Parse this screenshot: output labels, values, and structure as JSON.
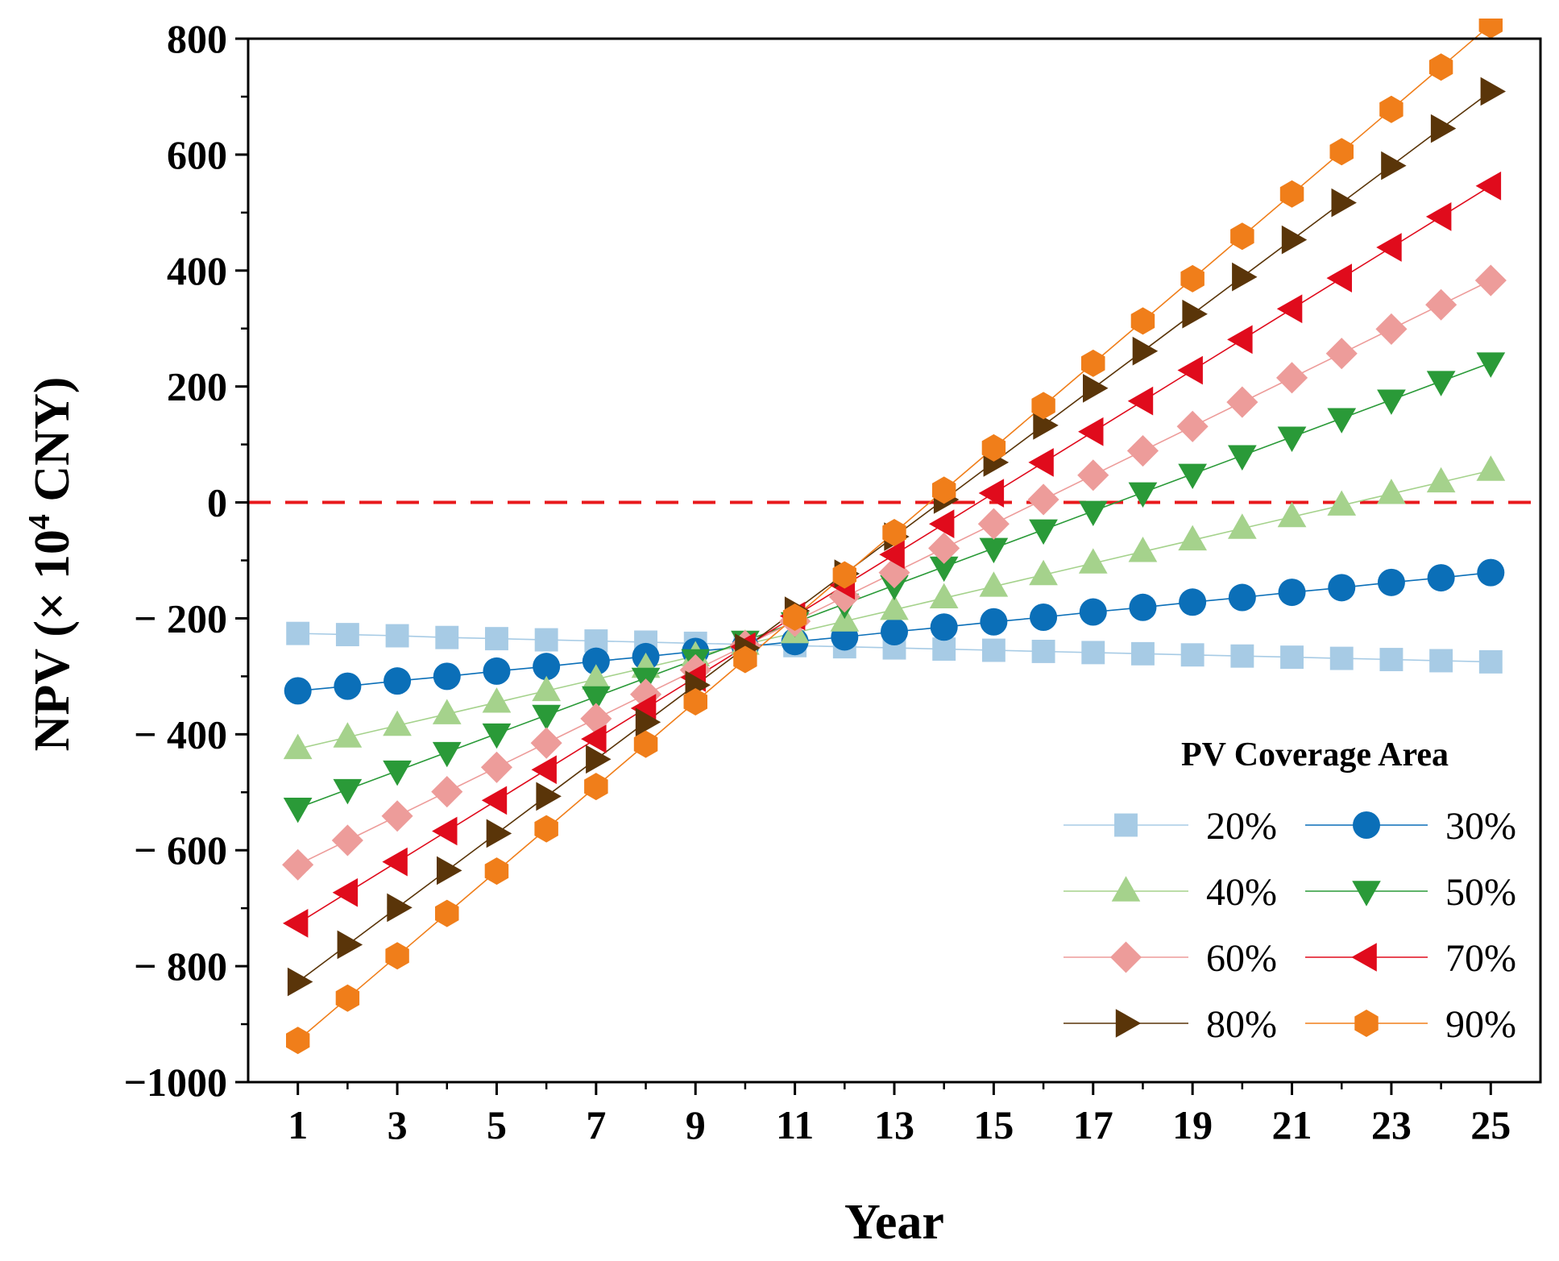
{
  "chart_data": {
    "type": "line",
    "xlabel": "Year",
    "ylabel": "NPV (× 10",
    "ylabel_superscript": "4",
    "ylabel_suffix": " CNY)",
    "xlim": [
      0,
      26
    ],
    "ylim": [
      -1000,
      800
    ],
    "x_ticks": [
      1,
      3,
      5,
      7,
      9,
      11,
      13,
      15,
      17,
      19,
      21,
      23,
      25
    ],
    "x_tick_labels": [
      "1",
      "3",
      "5",
      "7",
      "9",
      "11",
      "13",
      "15",
      "17",
      "19",
      "21",
      "23",
      "25"
    ],
    "y_ticks": [
      -1000,
      -800,
      -600,
      -400,
      -200,
      0,
      200,
      400,
      600,
      800
    ],
    "y_tick_labels": [
      "−1000",
      "− 800",
      "− 600",
      "− 400",
      "− 200",
      "0",
      "200",
      "400",
      "600",
      "800"
    ],
    "grid": false,
    "reference_line": {
      "y": 0,
      "color": "#e8191c",
      "style": "dashed"
    },
    "legend": {
      "title": "PV Coverage Area",
      "placement": "bottom-right",
      "columns": 2
    },
    "x": [
      1,
      2,
      3,
      4,
      5,
      6,
      7,
      8,
      9,
      10,
      11,
      12,
      13,
      14,
      15,
      16,
      17,
      18,
      19,
      20,
      21,
      22,
      23,
      24,
      25
    ],
    "series": [
      {
        "name": "20%",
        "color": "#a7cbe5",
        "marker": "square",
        "values": [
          -226,
          -228,
          -230,
          -233,
          -235,
          -237,
          -239,
          -241,
          -243,
          -245,
          -247,
          -249,
          -251,
          -253,
          -255,
          -257,
          -259,
          -261,
          -263,
          -265,
          -267,
          -269,
          -271,
          -273,
          -275
        ]
      },
      {
        "name": "30%",
        "color": "#0b6fb8",
        "marker": "circle",
        "values": [
          -325,
          -317,
          -308,
          -300,
          -291,
          -283,
          -274,
          -266,
          -257,
          -249,
          -240,
          -232,
          -223,
          -215,
          -206,
          -198,
          -189,
          -181,
          -172,
          -164,
          -155,
          -147,
          -138,
          -130,
          -121
        ]
      },
      {
        "name": "40%",
        "color": "#a5d28c",
        "marker": "triangle-up",
        "values": [
          -425,
          -405,
          -385,
          -365,
          -345,
          -325,
          -305,
          -285,
          -265,
          -245,
          -225,
          -205,
          -185,
          -165,
          -145,
          -125,
          -105,
          -85,
          -65,
          -45,
          -25,
          -5,
          15,
          35,
          55
        ]
      },
      {
        "name": "50%",
        "color": "#2a9a38",
        "marker": "triangle-down",
        "values": [
          -527,
          -495,
          -463,
          -431,
          -399,
          -367,
          -335,
          -303,
          -271,
          -239,
          -207,
          -175,
          -143,
          -111,
          -79,
          -47,
          -15,
          17,
          49,
          81,
          113,
          145,
          177,
          209,
          241
        ]
      },
      {
        "name": "60%",
        "color": "#ed9c9a",
        "marker": "diamond",
        "values": [
          -625,
          -583,
          -541,
          -499,
          -457,
          -415,
          -373,
          -331,
          -289,
          -247,
          -205,
          -163,
          -121,
          -79,
          -37,
          5,
          47,
          89,
          131,
          173,
          215,
          257,
          299,
          341,
          383
        ]
      },
      {
        "name": "70%",
        "color": "#e00b1c",
        "marker": "triangle-left",
        "values": [
          -726,
          -673,
          -620,
          -567,
          -514,
          -461,
          -408,
          -355,
          -302,
          -249,
          -196,
          -143,
          -90,
          -37,
          16,
          69,
          122,
          175,
          228,
          281,
          334,
          387,
          440,
          493,
          546
        ]
      },
      {
        "name": "80%",
        "color": "#5a3509",
        "marker": "triangle-right",
        "values": [
          -827,
          -763,
          -699,
          -635,
          -571,
          -507,
          -443,
          -379,
          -315,
          -251,
          -187,
          -123,
          -59,
          5,
          69,
          133,
          197,
          261,
          325,
          389,
          453,
          517,
          581,
          645,
          709
        ]
      },
      {
        "name": "90%",
        "color": "#f07e1a",
        "marker": "hexagon",
        "values": [
          -928,
          -855,
          -782,
          -709,
          -636,
          -563,
          -490,
          -417,
          -344,
          -271,
          -198,
          -125,
          -52,
          21,
          94,
          167,
          240,
          313,
          386,
          459,
          532,
          605,
          678,
          751,
          824
        ]
      }
    ]
  }
}
